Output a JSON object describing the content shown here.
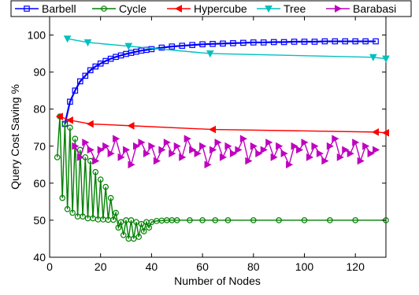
{
  "chart_data": {
    "type": "line",
    "xlabel": "Number of Nodes",
    "ylabel": "Query Cost Saving %",
    "xlim": [
      0,
      132
    ],
    "ylim": [
      40,
      105
    ],
    "xticks": [
      0,
      20,
      40,
      60,
      80,
      100,
      120
    ],
    "yticks": [
      40,
      50,
      60,
      70,
      80,
      90,
      100
    ],
    "grid": false,
    "legend_position": "top",
    "series": [
      {
        "name": "Barbell",
        "color": "#0000ff",
        "marker": "square",
        "x": [
          6,
          8,
          10,
          12,
          14,
          16,
          18,
          20,
          22,
          24,
          26,
          28,
          30,
          32,
          34,
          36,
          38,
          40,
          44,
          48,
          52,
          56,
          60,
          64,
          68,
          72,
          76,
          80,
          84,
          88,
          92,
          96,
          100,
          104,
          108,
          112,
          116,
          120,
          124,
          128
        ],
        "y": [
          76,
          82,
          85,
          87.5,
          89,
          90.5,
          91.5,
          92.3,
          93,
          93.6,
          94.1,
          94.5,
          94.9,
          95.2,
          95.5,
          95.8,
          96,
          96.2,
          96.6,
          96.9,
          97.1,
          97.3,
          97.5,
          97.6,
          97.7,
          97.8,
          97.9,
          98,
          98,
          98.1,
          98.1,
          98.2,
          98.2,
          98.2,
          98.3,
          98.3,
          98.3,
          98.3,
          98.3,
          98.3
        ]
      },
      {
        "name": "Cycle",
        "color": "#008000",
        "marker": "circle",
        "x": [
          3,
          4,
          5,
          6,
          7,
          8,
          9,
          10,
          11,
          12,
          13,
          14,
          15,
          16,
          17,
          18,
          19,
          20,
          21,
          22,
          23,
          24,
          25,
          26,
          27,
          28,
          29,
          30,
          31,
          32,
          33,
          34,
          35,
          36,
          37,
          38,
          39,
          40,
          42,
          44,
          46,
          48,
          50,
          55,
          60,
          65,
          70,
          80,
          90,
          100,
          110,
          120,
          132
        ],
        "y": [
          67,
          78,
          56,
          76,
          53,
          75,
          52,
          72,
          51,
          69,
          51,
          67,
          50.5,
          66,
          50.5,
          63,
          50.2,
          61,
          50.2,
          59,
          50.1,
          56,
          50.1,
          52,
          48,
          49.5,
          46,
          50,
          45,
          50,
          45,
          49.5,
          45.5,
          49,
          47,
          49.5,
          48,
          49.5,
          49.8,
          49.9,
          50,
          50,
          50,
          50,
          50,
          50,
          50,
          50,
          50,
          50,
          50,
          50,
          50
        ]
      },
      {
        "name": "Hypercube",
        "color": "#ff0000",
        "marker": "triangle-left",
        "x": [
          4,
          8,
          16,
          32,
          64,
          128,
          132
        ],
        "y": [
          78,
          77,
          76,
          75.5,
          74.5,
          73.8,
          73.6
        ]
      },
      {
        "name": "Tree",
        "color": "#00c0c0",
        "marker": "triangle-down",
        "x": [
          7,
          15,
          31,
          63,
          127,
          132
        ],
        "y": [
          99,
          98,
          97,
          95,
          94,
          93.6
        ]
      },
      {
        "name": "Barabasi",
        "color": "#c000c0",
        "marker": "triangle-right",
        "x": [
          10,
          12,
          14,
          16,
          18,
          20,
          22,
          24,
          26,
          28,
          30,
          32,
          34,
          36,
          38,
          40,
          42,
          44,
          46,
          48,
          50,
          52,
          54,
          56,
          58,
          60,
          62,
          64,
          66,
          68,
          70,
          72,
          74,
          76,
          78,
          80,
          82,
          84,
          86,
          88,
          90,
          92,
          94,
          96,
          98,
          100,
          102,
          104,
          106,
          108,
          110,
          112,
          114,
          116,
          118,
          120,
          122,
          124,
          126,
          128
        ],
        "y": [
          70,
          67,
          71,
          69,
          66,
          69,
          70,
          68,
          72,
          67,
          69,
          65,
          70,
          71,
          68,
          70,
          66,
          69,
          71,
          68,
          70,
          67,
          72,
          69,
          68,
          70,
          65,
          69,
          71,
          67,
          70,
          68,
          69,
          72,
          66,
          70,
          68,
          69,
          71,
          67,
          70,
          68,
          65,
          70,
          69,
          71,
          67,
          70,
          68,
          66,
          70,
          72,
          67,
          69,
          68,
          71,
          66,
          70,
          68,
          69
        ]
      }
    ]
  }
}
